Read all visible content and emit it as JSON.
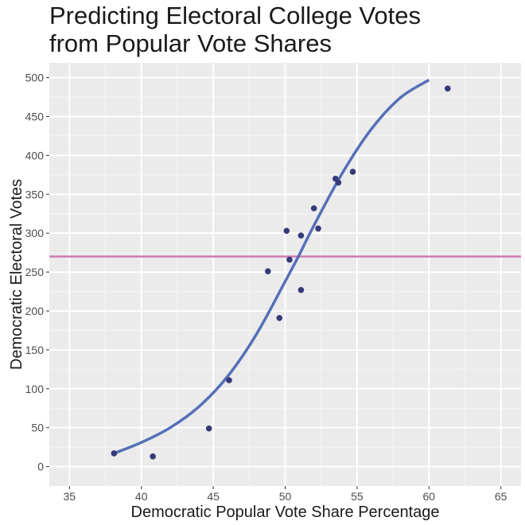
{
  "chart_data": {
    "type": "scatter",
    "title_lines": [
      "Predicting Electoral College Votes",
      "from Popular Vote Shares"
    ],
    "xlabel": "Democratic Popular Vote Share Percentage",
    "ylabel": "Democratic Electoral Votes",
    "xlim": [
      33.6,
      66.4
    ],
    "ylim": [
      -25,
      519
    ],
    "x_ticks": [
      35,
      40,
      45,
      50,
      55,
      60,
      65
    ],
    "y_ticks": [
      0,
      50,
      100,
      150,
      200,
      250,
      300,
      350,
      400,
      450,
      500
    ],
    "grid": true,
    "points": [
      {
        "x": 38.1,
        "y": 17
      },
      {
        "x": 40.8,
        "y": 13
      },
      {
        "x": 44.7,
        "y": 49
      },
      {
        "x": 46.1,
        "y": 111
      },
      {
        "x": 48.8,
        "y": 251
      },
      {
        "x": 49.6,
        "y": 191
      },
      {
        "x": 50.1,
        "y": 303
      },
      {
        "x": 50.3,
        "y": 266
      },
      {
        "x": 51.1,
        "y": 297
      },
      {
        "x": 51.1,
        "y": 227
      },
      {
        "x": 52.0,
        "y": 332
      },
      {
        "x": 52.3,
        "y": 306
      },
      {
        "x": 53.5,
        "y": 370
      },
      {
        "x": 53.7,
        "y": 365
      },
      {
        "x": 54.7,
        "y": 379
      },
      {
        "x": 61.3,
        "y": 486
      }
    ],
    "fit_curve": [
      {
        "x": 38.1,
        "y": 17
      },
      {
        "x": 40,
        "y": 31
      },
      {
        "x": 42,
        "y": 50
      },
      {
        "x": 44,
        "y": 77
      },
      {
        "x": 46,
        "y": 116
      },
      {
        "x": 48,
        "y": 170
      },
      {
        "x": 50,
        "y": 238
      },
      {
        "x": 51,
        "y": 273
      },
      {
        "x": 52,
        "y": 310
      },
      {
        "x": 54,
        "y": 378
      },
      {
        "x": 56,
        "y": 434
      },
      {
        "x": 58,
        "y": 474
      },
      {
        "x": 60,
        "y": 497
      }
    ],
    "reference_line_y": 270,
    "colors": {
      "panel": "#ebebeb",
      "grid_major": "#ffffff",
      "grid_minor": "#f5f5f5",
      "points": "#363a7a",
      "fit": "#5470b8",
      "reference": "#cf7bb8"
    }
  }
}
